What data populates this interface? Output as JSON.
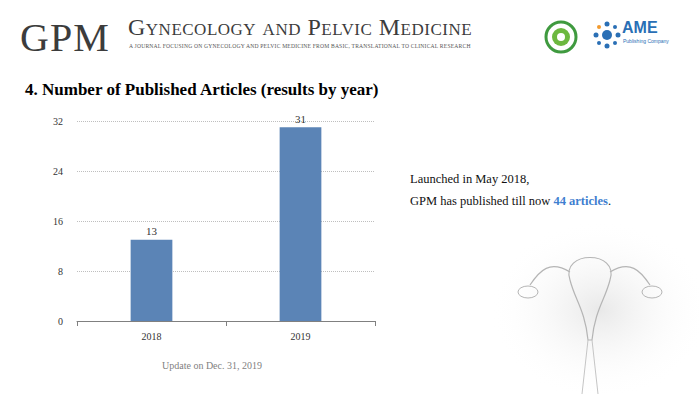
{
  "header": {
    "abbreviation": "GPM",
    "journal_name": "Gynecology and Pelvic Medicine",
    "tagline": "A JOURNAL FOCUSING ON GYNECOLOGY AND PELVIC MEDICINE FROM BASIC, TRANSLATIONAL TO CLINICAL RESEARCH",
    "publisher": "AME",
    "publisher_subtitle": "Publishing Company"
  },
  "side_text": {
    "line1": "Launched in May 2018,",
    "line2_prefix": "GPM has published till now ",
    "line2_highlight": "44 articles",
    "line2_suffix": "."
  },
  "chart_data": {
    "type": "bar",
    "title": "4. Number of Published Articles (results by year)",
    "categories": [
      "2018",
      "2019"
    ],
    "values": [
      13,
      31
    ],
    "color": "#5b84b6",
    "ylim": [
      0,
      32
    ],
    "yticks": [
      0,
      8,
      16,
      24,
      32
    ],
    "grid": true,
    "data_labels": true,
    "annotations": [
      "Update on Dec. 31, 2019"
    ]
  }
}
